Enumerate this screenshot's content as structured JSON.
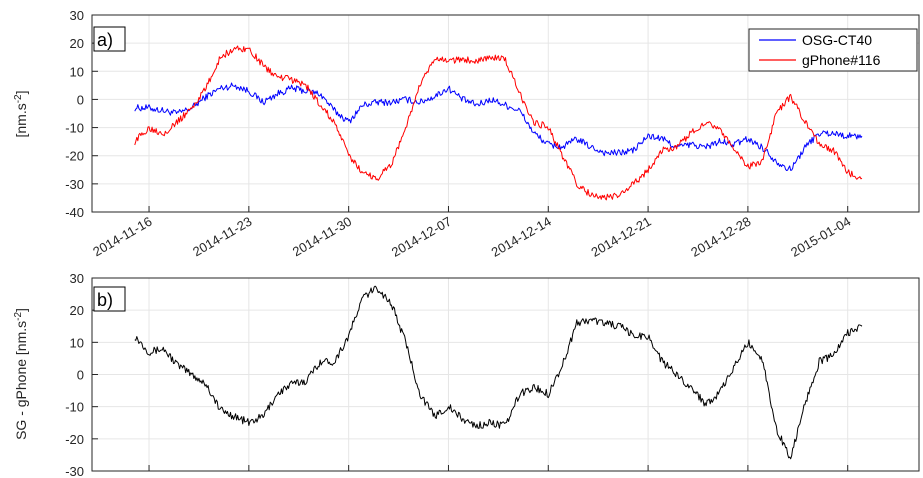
{
  "chart_data": [
    {
      "type": "line",
      "panel_label": "a)",
      "ylabel": "[nm.s-2]",
      "ylabel_parts": {
        "main": "[nm.s",
        "sup": "-2",
        "end": "]"
      },
      "xlim": [
        "2014-11-12",
        "2015-01-09"
      ],
      "ylim": [
        -40,
        30
      ],
      "yticks": [
        -40,
        -30,
        -20,
        -10,
        0,
        10,
        20,
        30
      ],
      "xticks": [
        "2014-11-16",
        "2014-11-23",
        "2014-11-30",
        "2014-12-07",
        "2014-12-14",
        "2014-12-21",
        "2014-12-28",
        "2015-01-04"
      ],
      "grid": true,
      "legend_position": "top-right",
      "series": [
        {
          "name": "OSG-CT40",
          "color": "#0000ff",
          "x": [
            "2014-11-15",
            "2014-11-16",
            "2014-11-17",
            "2014-11-18",
            "2014-11-19",
            "2014-11-20",
            "2014-11-21",
            "2014-11-22",
            "2014-11-23",
            "2014-11-24",
            "2014-11-25",
            "2014-11-26",
            "2014-11-27",
            "2014-11-28",
            "2014-11-29",
            "2014-11-30",
            "2014-12-01",
            "2014-12-02",
            "2014-12-03",
            "2014-12-04",
            "2014-12-05",
            "2014-12-06",
            "2014-12-07",
            "2014-12-08",
            "2014-12-09",
            "2014-12-10",
            "2014-12-11",
            "2014-12-12",
            "2014-12-13",
            "2014-12-14",
            "2014-12-15",
            "2014-12-16",
            "2014-12-17",
            "2014-12-18",
            "2014-12-19",
            "2014-12-20",
            "2014-12-21",
            "2014-12-22",
            "2014-12-23",
            "2014-12-24",
            "2014-12-25",
            "2014-12-26",
            "2014-12-27",
            "2014-12-28",
            "2014-12-29",
            "2014-12-30",
            "2014-12-31",
            "2015-01-01",
            "2015-01-02",
            "2015-01-03",
            "2015-01-04",
            "2015-01-05"
          ],
          "values": [
            -3,
            -3,
            -4,
            -5,
            -3,
            1,
            4,
            5,
            3,
            -1,
            2,
            4,
            3,
            2,
            -4,
            -8,
            -2,
            -1,
            -1,
            0,
            -1,
            1,
            4,
            0,
            -2,
            0,
            -2,
            -4,
            -12,
            -16,
            -17,
            -14,
            -17,
            -19,
            -19,
            -18,
            -13,
            -14,
            -17,
            -16,
            -17,
            -15,
            -16,
            -14,
            -17,
            -22,
            -25,
            -17,
            -12,
            -12,
            -13,
            -13
          ]
        },
        {
          "name": "gPhone#116",
          "color": "#ff0000",
          "x": [
            "2014-11-15",
            "2014-11-16",
            "2014-11-17",
            "2014-11-18",
            "2014-11-19",
            "2014-11-20",
            "2014-11-21",
            "2014-11-22",
            "2014-11-23",
            "2014-11-24",
            "2014-11-25",
            "2014-11-26",
            "2014-11-27",
            "2014-11-28",
            "2014-11-29",
            "2014-11-30",
            "2014-12-01",
            "2014-12-02",
            "2014-12-03",
            "2014-12-04",
            "2014-12-05",
            "2014-12-06",
            "2014-12-07",
            "2014-12-08",
            "2014-12-09",
            "2014-12-10",
            "2014-12-11",
            "2014-12-12",
            "2014-12-13",
            "2014-12-14",
            "2014-12-15",
            "2014-12-16",
            "2014-12-17",
            "2014-12-18",
            "2014-12-19",
            "2014-12-20",
            "2014-12-21",
            "2014-12-22",
            "2014-12-23",
            "2014-12-24",
            "2014-12-25",
            "2014-12-26",
            "2014-12-27",
            "2014-12-28",
            "2014-12-29",
            "2014-12-30",
            "2014-12-31",
            "2015-01-01",
            "2015-01-02",
            "2015-01-03",
            "2015-01-04",
            "2015-01-05"
          ],
          "values": [
            -15,
            -10,
            -12,
            -8,
            -3,
            4,
            15,
            18,
            18,
            12,
            8,
            7,
            5,
            -2,
            -8,
            -20,
            -26,
            -28,
            -23,
            -10,
            5,
            14,
            14,
            14,
            14,
            15,
            14,
            2,
            -8,
            -10,
            -20,
            -30,
            -34,
            -35,
            -34,
            -30,
            -25,
            -18,
            -17,
            -12,
            -8,
            -10,
            -18,
            -24,
            -22,
            -5,
            1,
            -8,
            -16,
            -18,
            -26,
            -28
          ]
        }
      ]
    },
    {
      "type": "line",
      "panel_label": "b)",
      "ylabel": "SG - gPhone [nm.s-2]",
      "ylabel_parts": {
        "main": "SG - gPhone [nm.s",
        "sup": "-2",
        "end": "]"
      },
      "xlim": [
        "2014-11-12",
        "2015-01-09"
      ],
      "ylim": [
        -30,
        30
      ],
      "yticks": [
        -30,
        -20,
        -10,
        0,
        10,
        20,
        30
      ],
      "grid": true,
      "series": [
        {
          "color": "#000000",
          "x": [
            "2014-11-15",
            "2014-11-16",
            "2014-11-17",
            "2014-11-18",
            "2014-11-19",
            "2014-11-20",
            "2014-11-21",
            "2014-11-22",
            "2014-11-23",
            "2014-11-24",
            "2014-11-25",
            "2014-11-26",
            "2014-11-27",
            "2014-11-28",
            "2014-11-29",
            "2014-11-30",
            "2014-12-01",
            "2014-12-02",
            "2014-12-03",
            "2014-12-04",
            "2014-12-05",
            "2014-12-06",
            "2014-12-07",
            "2014-12-08",
            "2014-12-09",
            "2014-12-10",
            "2014-12-11",
            "2014-12-12",
            "2014-12-13",
            "2014-12-14",
            "2014-12-15",
            "2014-12-16",
            "2014-12-17",
            "2014-12-18",
            "2014-12-19",
            "2014-12-20",
            "2014-12-21",
            "2014-12-22",
            "2014-12-23",
            "2014-12-24",
            "2014-12-25",
            "2014-12-26",
            "2014-12-27",
            "2014-12-28",
            "2014-12-29",
            "2014-12-30",
            "2014-12-31",
            "2015-01-01",
            "2015-01-02",
            "2015-01-03",
            "2015-01-04",
            "2015-01-05"
          ],
          "values": [
            12,
            7,
            8,
            3,
            0,
            -3,
            -11,
            -13,
            -15,
            -13,
            -6,
            -3,
            -2,
            4,
            4,
            12,
            24,
            27,
            22,
            10,
            -6,
            -13,
            -10,
            -14,
            -16,
            -15,
            -16,
            -6,
            -4,
            -6,
            3,
            16,
            17,
            16,
            15,
            12,
            12,
            4,
            0,
            -4,
            -9,
            -6,
            2,
            10,
            5,
            -17,
            -26,
            -9,
            4,
            6,
            13,
            15
          ]
        }
      ]
    }
  ]
}
